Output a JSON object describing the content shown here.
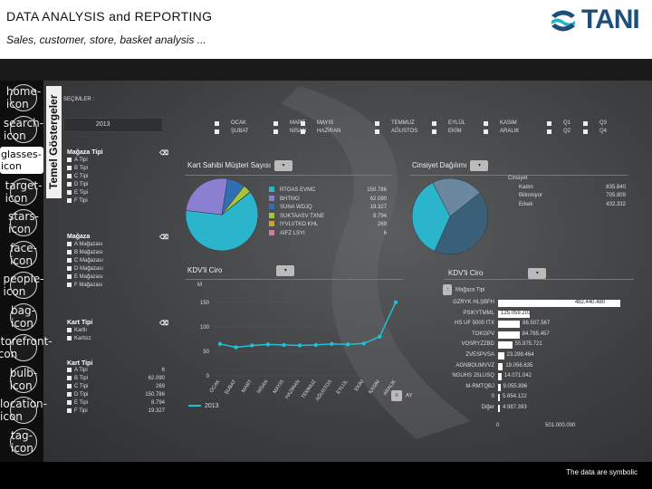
{
  "header": {
    "title": "DATA ANALYSIS and REPORTING",
    "subtitle": "Sales, customer, store, basket analysis ...",
    "logo_text": "TANI",
    "brand_color": "#1e4f7a",
    "accent": "#20b2c8"
  },
  "footer": {
    "note": "The data are symbolic"
  },
  "nav": {
    "items": [
      "home-icon",
      "search-icon",
      "glasses-icon",
      "target-icon",
      "stars-icon",
      "face-icon",
      "people-icon",
      "bag-icon",
      "storefront-icon",
      "bulb-icon",
      "location-icon",
      "tag-icon"
    ]
  },
  "sidebar_label": "Temel Göstergeler",
  "selections": {
    "label": "SEÇİMLER :",
    "year": "2013",
    "months": [
      [
        "OCAK",
        "ŞUBAT"
      ],
      [
        "MART",
        "NİSAN"
      ],
      [
        "MAYIS",
        "HAZİRAN"
      ],
      [
        "TEMMUZ",
        "AĞUSTOS"
      ],
      [
        "EYLÜL",
        "EKİM"
      ],
      [
        "KASIM",
        "ARALIK"
      ],
      [
        "Q1",
        "Q2"
      ],
      [
        "Q3",
        "Q4"
      ]
    ]
  },
  "filters": {
    "store_type": {
      "title": "Mağaza Tipi",
      "items": [
        "A Tipi",
        "B Tipi",
        "C Tipi",
        "D Tipi",
        "E Tipi",
        "F Tipi"
      ]
    },
    "store": {
      "title": "Mağaza",
      "items": [
        "A Mağazası",
        "B Mağazası",
        "C Mağazası",
        "D Mağazası",
        "E Mağazası",
        "F Mağazası"
      ]
    },
    "card_type": {
      "title": "Kart Tipi",
      "items": [
        "Kartlı",
        "Kartsız"
      ]
    },
    "card_type2": {
      "title": "Kart Tipi",
      "items": [
        {
          "label": "A Tipi",
          "value": "6"
        },
        {
          "label": "B Tipi",
          "value": "62.090"
        },
        {
          "label": "C Tipi",
          "value": "269"
        },
        {
          "label": "D Tipi",
          "value": "150.786"
        },
        {
          "label": "E Tipi",
          "value": "8.794"
        },
        {
          "label": "F Tipi",
          "value": "19.327"
        }
      ]
    }
  },
  "card_owner": {
    "title": "Kart Sahibi Müşteri Sayısı",
    "rows": [
      {
        "label": "RTOAS EVMC",
        "value": "150.786",
        "color": "#2ab5cc"
      },
      {
        "label": "BHTMO",
        "value": "62.090",
        "color": "#8a7fd1"
      },
      {
        "label": "SUNA WDJQ",
        "value": "19.327",
        "color": "#2f6fb3"
      },
      {
        "label": "SUKTAASV TXNE",
        "value": "8.794",
        "color": "#a8c43a"
      },
      {
        "label": "IYVLVTKO KHL",
        "value": "269",
        "color": "#c9a233"
      },
      {
        "label": "AİFZ LSYI",
        "value": "6",
        "color": "#d47a9a"
      }
    ]
  },
  "gender": {
    "title": "Cinsiyet Dağılımı",
    "head": "Cinsiyet",
    "rows": [
      {
        "label": "Kadın",
        "value": "835.840"
      },
      {
        "label": "Bilinmiyor",
        "value": "705.809"
      },
      {
        "label": "Erkek",
        "value": "432.332"
      }
    ]
  },
  "kdv_line": {
    "title": "KDV'li Ciro",
    "unit_label": "M",
    "legend": "2013",
    "ay_label": "AY"
  },
  "kdv_bar": {
    "title": "KDV'li Ciro",
    "store_type_label": "Mağaza Tipi",
    "axis_labels": [
      "0",
      "501.000.000"
    ],
    "rows": [
      {
        "label": "GZRYK HLŞBFH",
        "value": "482.440.480"
      },
      {
        "label": "PSIKYTMML",
        "value": "125.059.203"
      },
      {
        "label": "HS UF 5000 ITX",
        "value": "86.507.567"
      },
      {
        "label": "TOKGPV",
        "value": "84.765.457"
      },
      {
        "label": "VOSRYZZBD",
        "value": "55.975.721"
      },
      {
        "label": "ZVESPVSA",
        "value": "23.298.464"
      },
      {
        "label": "AGNBOUMVVZ",
        "value": "19.056.635"
      },
      {
        "label": "NGUHS JSLUSQ",
        "value": "14.071.042"
      },
      {
        "label": "M-RMTQBJ",
        "value": "9.055.896"
      },
      {
        "label": "0",
        "value": "5.654.122"
      },
      {
        "label": "Diğer",
        "value": "4.987.393"
      }
    ]
  },
  "chart_data": [
    {
      "type": "pie",
      "title": "Kart Sahibi Müşteri Sayısı",
      "categories": [
        "RTOAS EVMC",
        "BHTMO",
        "SUNA WDJQ",
        "SUKTAASV TXNE",
        "IYVLVTKO KHL",
        "AİFZ LSYI"
      ],
      "values": [
        150786,
        62090,
        19327,
        8794,
        269,
        6
      ]
    },
    {
      "type": "pie",
      "title": "Cinsiyet Dağılımı",
      "categories": [
        "Kadın",
        "Bilinmiyor",
        "Erkek"
      ],
      "values": [
        835840,
        705809,
        432332
      ]
    },
    {
      "type": "line",
      "title": "KDV'li Ciro",
      "ylabel": "M",
      "ylim": [
        0,
        170
      ],
      "yticks": [
        0,
        50,
        100,
        150
      ],
      "categories": [
        "OCAK",
        "ŞUBAT",
        "MART",
        "NİSAN",
        "MAYIS",
        "HAZİRAN",
        "TEMMUZ",
        "AĞUSTOS",
        "EYLÜL",
        "EKİM",
        "KASIM",
        "ARALIK"
      ],
      "series": [
        {
          "name": "2013",
          "values": [
            65,
            58,
            62,
            64,
            63,
            62,
            63,
            65,
            64,
            66,
            80,
            150
          ]
        }
      ]
    },
    {
      "type": "bar",
      "title": "KDV'li Ciro",
      "categories": [
        "GZRYK HLŞBFH",
        "PSIKYTMML",
        "HS UF 5000 ITX",
        "TOKGPV",
        "VOSRYZZBD",
        "ZVESPVSA",
        "AGNBOUMVVZ",
        "NGUHS JSLUSQ",
        "M-RMTQBJ",
        "0",
        "Diğer"
      ],
      "values": [
        482440480,
        125059203,
        86507567,
        84765457,
        55975721,
        23298464,
        19056635,
        14071042,
        9055896,
        5654122,
        4987393
      ],
      "xlim": [
        0,
        501000000
      ]
    }
  ]
}
